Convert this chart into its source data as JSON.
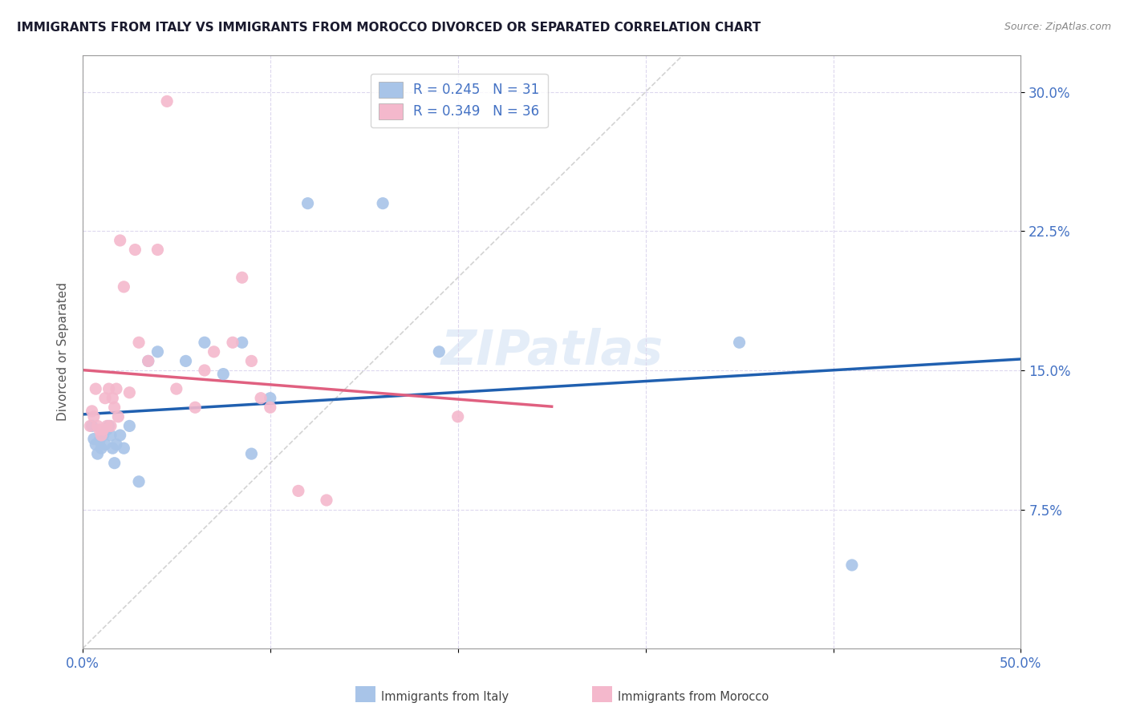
{
  "title": "IMMIGRANTS FROM ITALY VS IMMIGRANTS FROM MOROCCO DIVORCED OR SEPARATED CORRELATION CHART",
  "source_text": "Source: ZipAtlas.com",
  "ylabel": "Divorced or Separated",
  "legend_italy": "R = 0.245   N = 31",
  "legend_morocco": "R = 0.349   N = 36",
  "italy_color": "#a8c4e8",
  "morocco_color": "#f4b8cc",
  "italy_line_color": "#2060b0",
  "morocco_line_color": "#e06080",
  "diagonal_color": "#c8c8c8",
  "watermark": "ZIPatlas",
  "italy_x": [
    0.005,
    0.006,
    0.007,
    0.008,
    0.009,
    0.01,
    0.011,
    0.012,
    0.013,
    0.014,
    0.015,
    0.016,
    0.017,
    0.018,
    0.02,
    0.022,
    0.025,
    0.03,
    0.035,
    0.04,
    0.055,
    0.065,
    0.075,
    0.085,
    0.09,
    0.1,
    0.12,
    0.16,
    0.19,
    0.35,
    0.41
  ],
  "italy_y": [
    0.12,
    0.113,
    0.11,
    0.105,
    0.112,
    0.108,
    0.115,
    0.11,
    0.118,
    0.12,
    0.115,
    0.108,
    0.1,
    0.11,
    0.115,
    0.108,
    0.12,
    0.09,
    0.155,
    0.16,
    0.155,
    0.165,
    0.148,
    0.165,
    0.105,
    0.135,
    0.24,
    0.24,
    0.16,
    0.165,
    0.045
  ],
  "morocco_x": [
    0.004,
    0.005,
    0.006,
    0.007,
    0.008,
    0.009,
    0.01,
    0.011,
    0.012,
    0.013,
    0.014,
    0.015,
    0.016,
    0.017,
    0.018,
    0.019,
    0.02,
    0.022,
    0.025,
    0.028,
    0.03,
    0.035,
    0.04,
    0.045,
    0.05,
    0.06,
    0.065,
    0.07,
    0.08,
    0.085,
    0.09,
    0.095,
    0.1,
    0.115,
    0.13,
    0.2
  ],
  "morocco_y": [
    0.12,
    0.128,
    0.125,
    0.14,
    0.12,
    0.118,
    0.115,
    0.118,
    0.135,
    0.12,
    0.14,
    0.12,
    0.135,
    0.13,
    0.14,
    0.125,
    0.22,
    0.195,
    0.138,
    0.215,
    0.165,
    0.155,
    0.215,
    0.295,
    0.14,
    0.13,
    0.15,
    0.16,
    0.165,
    0.2,
    0.155,
    0.135,
    0.13,
    0.085,
    0.08,
    0.125
  ],
  "xlim": [
    0.0,
    0.5
  ],
  "ylim": [
    0.0,
    0.32
  ],
  "xticks": [
    0.0,
    0.1,
    0.2,
    0.3,
    0.4,
    0.5
  ],
  "xtick_labels": [
    "0.0%",
    "",
    "",
    "",
    "",
    "50.0%"
  ],
  "yticks": [
    0.075,
    0.15,
    0.225,
    0.3
  ],
  "ytick_labels": [
    "7.5%",
    "15.0%",
    "22.5%",
    "30.0%"
  ],
  "background_color": "#ffffff",
  "grid_color": "#ddd8ee",
  "title_color": "#1a1a2e",
  "axis_label_color": "#4472c4",
  "tick_label_color": "#4472c4",
  "axis_color": "#999999"
}
